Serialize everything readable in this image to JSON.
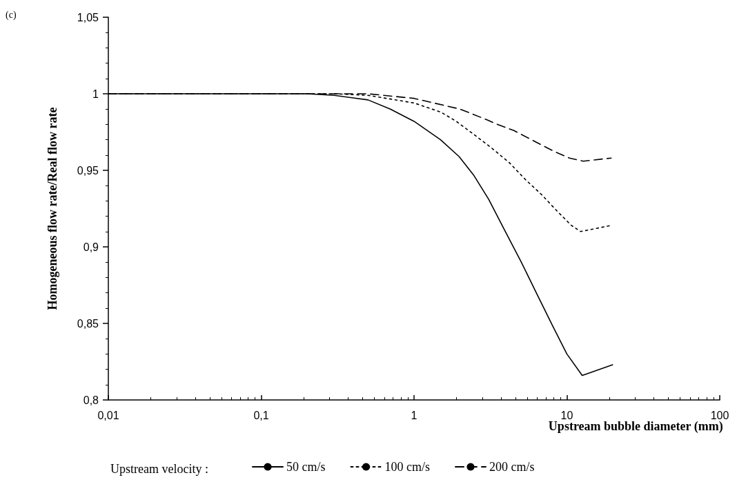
{
  "chart_data": {
    "type": "line",
    "xlabel": "Upstream bubble diameter (mm)",
    "ylabel": "Homogeneous flow rate/Real flow rate",
    "legend_title": "Upstream velocity :",
    "annotations": [
      "(c)"
    ],
    "log": "x",
    "grid": false,
    "legend": "bottom",
    "marker": "none",
    "xlim": [
      0.01,
      100
    ],
    "xticks": [
      {
        "value": 0.01,
        "label": "0,01"
      },
      {
        "value": 0.1,
        "label": "0,1"
      },
      {
        "value": 1,
        "label": "1"
      },
      {
        "value": 10,
        "label": "10"
      },
      {
        "value": 100,
        "label": "100"
      }
    ],
    "ylim": [
      0.8,
      1.05
    ],
    "yticks": [
      {
        "value": 0.8,
        "label": "0,8"
      },
      {
        "value": 0.85,
        "label": "0,85"
      },
      {
        "value": 0.9,
        "label": "0,9"
      },
      {
        "value": 0.95,
        "label": "0,95"
      },
      {
        "value": 1,
        "label": "1"
      },
      {
        "value": 1.05,
        "label": "1,05"
      }
    ],
    "series": [
      {
        "name": "50 cm/s",
        "color": "#000000",
        "line_style": "solid",
        "x": [
          0.01,
          0.1,
          0.2,
          0.3,
          0.5,
          0.7,
          1,
          1.49,
          1.97,
          2.45,
          3.08,
          3.91,
          5.03,
          6.38,
          8.1,
          10,
          12.6,
          19.9
        ],
        "values": [
          1,
          1,
          1,
          0.999,
          0.996,
          0.99,
          0.982,
          0.97,
          0.959,
          0.947,
          0.931,
          0.911,
          0.89,
          0.869,
          0.848,
          0.83,
          0.816,
          0.823
        ]
      },
      {
        "name": "100 cm/s",
        "color": "#000000",
        "line_style": "dotted",
        "x": [
          0.01,
          0.1,
          0.3,
          0.5,
          1,
          1.5,
          1.89,
          2.42,
          3.18,
          4.2,
          5.35,
          6.85,
          8.7,
          10.7,
          12.3,
          19.5
        ],
        "values": [
          1,
          1,
          1,
          0.999,
          0.994,
          0.988,
          0.982,
          0.974,
          0.965,
          0.955,
          0.944,
          0.934,
          0.923,
          0.914,
          0.91,
          0.914
        ]
      },
      {
        "name": "200 cm/s",
        "color": "#000000",
        "line_style": "dashed",
        "x": [
          0.01,
          0.1,
          0.5,
          1,
          2,
          3,
          3.52,
          4.5,
          6.4,
          8.4,
          10.4,
          12.8,
          19.5
        ],
        "values": [
          1,
          1,
          1,
          0.997,
          0.99,
          0.983,
          0.98,
          0.976,
          0.968,
          0.962,
          0.958,
          0.956,
          0.958
        ]
      }
    ]
  }
}
